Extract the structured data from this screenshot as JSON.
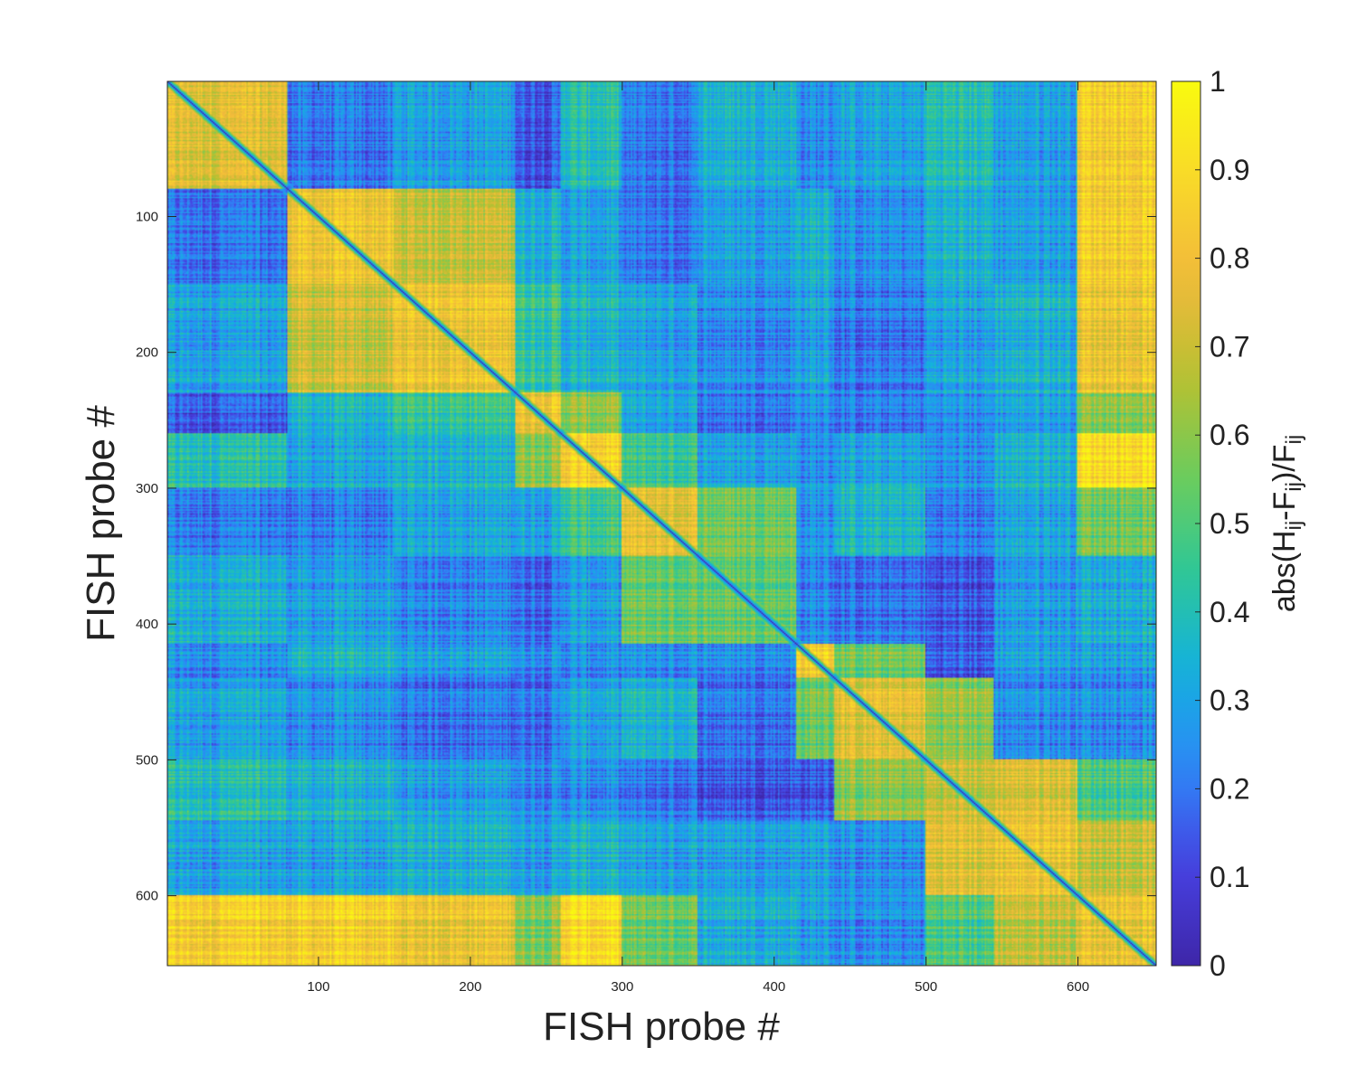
{
  "chart_data": {
    "type": "heatmap",
    "title": "",
    "xlabel": "FISH probe #",
    "ylabel": "FISH probe #",
    "matrix_size": 651,
    "xlim": [
      0.5,
      651.5
    ],
    "ylim": [
      0.5,
      651.5
    ],
    "y_direction": "reversed",
    "x_ticks": [
      100,
      200,
      300,
      400,
      500,
      600
    ],
    "y_ticks": [
      100,
      200,
      300,
      400,
      500,
      600
    ],
    "grid": false,
    "colormap": "parula",
    "colormap_stops": [
      "#3e26a8",
      "#4741e1",
      "#2e87f7",
      "#13b1df",
      "#2ec797",
      "#6dcc5b",
      "#b9c030",
      "#f1b93c",
      "#f9d82a",
      "#f9fb0e"
    ],
    "colorbar": {
      "label": "abs(H",
      "label_parts": [
        {
          "text": "abs(H",
          "sub": false
        },
        {
          "text": "ij",
          "sub": true
        },
        {
          "text": "-F",
          "sub": false
        },
        {
          "text": "ij",
          "sub": true
        },
        {
          "text": ")/F",
          "sub": false
        },
        {
          "text": "ij",
          "sub": true
        }
      ],
      "range": [
        0,
        1
      ],
      "ticks": [
        0,
        0.1,
        0.2,
        0.3,
        0.4,
        0.5,
        0.6,
        0.7,
        0.8,
        0.9,
        1
      ],
      "tick_labels": [
        "0",
        "0.1",
        "0.2",
        "0.3",
        "0.4",
        "0.5",
        "0.6",
        "0.7",
        "0.8",
        "0.9",
        "1"
      ],
      "location": "right"
    },
    "diagonal_value": 0,
    "block_boundaries": [
      1,
      80,
      150,
      230,
      260,
      300,
      350,
      415,
      440,
      500,
      545,
      600,
      651
    ],
    "block_values": [
      [
        0.75,
        0.2,
        0.3,
        0.15,
        0.4,
        0.2,
        0.35,
        0.25,
        0.3,
        0.4,
        0.3,
        0.85
      ],
      [
        0.2,
        0.8,
        0.7,
        0.35,
        0.3,
        0.2,
        0.3,
        0.35,
        0.25,
        0.35,
        0.3,
        0.85
      ],
      [
        0.3,
        0.7,
        0.8,
        0.45,
        0.35,
        0.3,
        0.25,
        0.3,
        0.2,
        0.3,
        0.35,
        0.8
      ],
      [
        0.15,
        0.35,
        0.45,
        0.8,
        0.6,
        0.3,
        0.2,
        0.25,
        0.2,
        0.25,
        0.3,
        0.6
      ],
      [
        0.4,
        0.3,
        0.35,
        0.6,
        0.85,
        0.45,
        0.3,
        0.25,
        0.3,
        0.25,
        0.35,
        0.9
      ],
      [
        0.2,
        0.2,
        0.3,
        0.3,
        0.45,
        0.75,
        0.55,
        0.25,
        0.35,
        0.2,
        0.3,
        0.55
      ],
      [
        0.35,
        0.3,
        0.25,
        0.2,
        0.3,
        0.55,
        0.55,
        0.25,
        0.2,
        0.15,
        0.3,
        0.35
      ],
      [
        0.25,
        0.35,
        0.3,
        0.25,
        0.25,
        0.25,
        0.25,
        0.85,
        0.55,
        0.15,
        0.3,
        0.3
      ],
      [
        0.3,
        0.25,
        0.2,
        0.2,
        0.3,
        0.35,
        0.2,
        0.55,
        0.75,
        0.6,
        0.25,
        0.25
      ],
      [
        0.4,
        0.35,
        0.3,
        0.25,
        0.25,
        0.2,
        0.15,
        0.15,
        0.6,
        0.7,
        0.75,
        0.5
      ],
      [
        0.3,
        0.3,
        0.35,
        0.3,
        0.35,
        0.3,
        0.3,
        0.3,
        0.25,
        0.75,
        0.8,
        0.7
      ],
      [
        0.85,
        0.85,
        0.8,
        0.6,
        0.9,
        0.55,
        0.35,
        0.3,
        0.25,
        0.5,
        0.7,
        0.8
      ]
    ]
  }
}
